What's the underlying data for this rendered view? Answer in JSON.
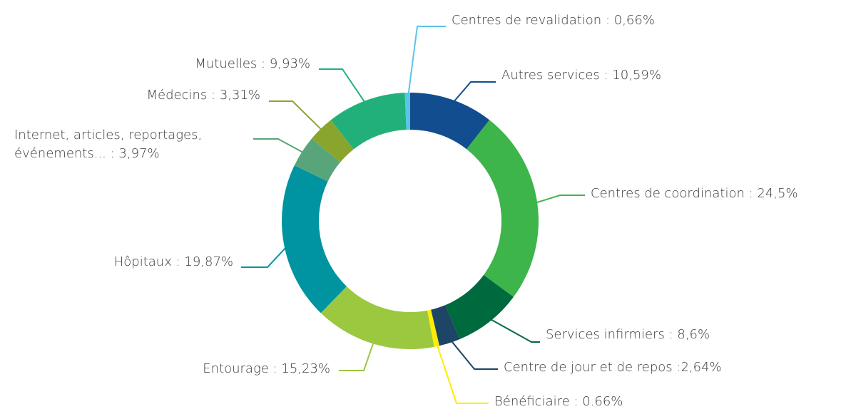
{
  "chart_data": {
    "type": "donut",
    "categories": [
      "Autres services",
      "Centres de coordination",
      "Services infirmiers",
      "Centre de jour et de repos",
      "Bénéficiaire",
      "Entourage",
      "Hôpitaux",
      "Internet, articles, reportages, événements...",
      "Médecins",
      "Mutuelles",
      "Centres de revalidation"
    ],
    "values": [
      10.59,
      24.5,
      8.6,
      2.64,
      0.66,
      15.23,
      19.87,
      3.97,
      3.31,
      9.93,
      0.66
    ],
    "value_labels": [
      ": 10,59%",
      ": 24,5%",
      ": 8,6%",
      ":2,64%",
      ": 0.66%",
      ": 15,23%",
      ": 19,87%",
      ": 3,97%",
      ": 3,31%",
      ": 9,93%",
      ": 0,66%"
    ],
    "colors": [
      "#124d8f",
      "#3db54a",
      "#006a3f",
      "#1c4566",
      "#ffed00",
      "#9bc83e",
      "#0093a0",
      "#58a47b",
      "#8aa52e",
      "#22b07a",
      "#5bc5e8"
    ]
  }
}
